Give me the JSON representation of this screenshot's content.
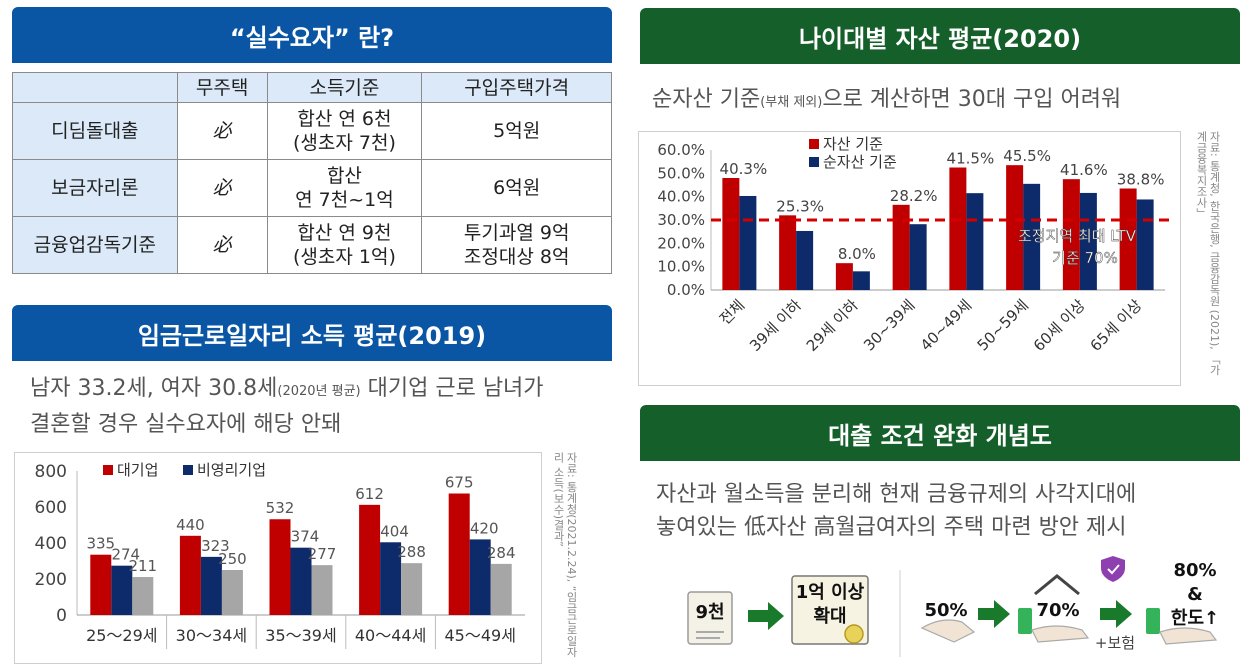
{
  "sections": {
    "definition": {
      "title": "“실수요자” 란?",
      "headers": [
        "",
        "무주택",
        "소득기준",
        "구입주택가격"
      ],
      "rows": [
        {
          "name": "디딤돌대출",
          "mark": "必",
          "income": [
            "합산 연 6천",
            "(생초자 7천)"
          ],
          "price": [
            "5억원"
          ]
        },
        {
          "name": "보금자리론",
          "mark": "必",
          "income": [
            "합산",
            "연 7천~1억"
          ],
          "price": [
            "6억원"
          ]
        },
        {
          "name": "금융업감독기준",
          "mark": "必",
          "income": [
            "합산 연 9천",
            "(생초자 1억)"
          ],
          "price": [
            "투기과열 9억",
            "조정대상 8억"
          ]
        }
      ]
    },
    "wage": {
      "title": "임금근로일자리 소득 평균(2019)",
      "desc_1a": "남자 33.2세, 여자 30.8세",
      "desc_1b": "(2020년 평균)",
      "desc_1c": " 대기업 근로 남녀가",
      "desc_2": "결혼할 경우 실수요자에 해당 안돼",
      "source": "자료: 통계청(2021.2.24), “임금근로일자리 소득(보수)결과”"
    },
    "asset": {
      "title": "나이대별 자산 평균(2020)",
      "desc_a": "순자산 기준",
      "desc_b": "(부채 제외)",
      "desc_c": "으로 계산하면 30대 구입 어려워",
      "source": "자료: 통계청, 한국은행, 금융감독원 (2021), 「가계금융복지조사」",
      "ref_label_1": "조정지역 최대 LTV",
      "ref_label_2": "기준 70%"
    },
    "concept": {
      "title": "대출 조건 완화 개념도",
      "desc_1": "자산과 월소득을 분리해 현재 금융규제의 사각지대에",
      "desc_2": "놓여있는 低자산 高월급여자의 주택 마련 방안 제시",
      "left_from": "9천",
      "left_to_1": "1억 이상",
      "left_to_2": "확대",
      "right_from": "50%",
      "right_mid": "70%",
      "right_plus": "+보험",
      "right_to_1": "80%",
      "right_to_2": "&",
      "right_to_3": "한도↑",
      "colors": {
        "arrow": "#1a7a2c",
        "badge": "#e8d25a"
      }
    }
  },
  "chart_data": [
    {
      "type": "bar",
      "categories": [
        "25～29세",
        "30～34세",
        "35～39세",
        "40～44세",
        "45～49세"
      ],
      "series": [
        {
          "name": "대기업",
          "values": [
            335,
            440,
            532,
            612,
            675
          ],
          "color": "#c00000"
        },
        {
          "name": "비영리기업",
          "values": [
            274,
            323,
            374,
            404,
            420
          ],
          "color": "#0d2a6b"
        },
        {
          "name": "",
          "values": [
            211,
            250,
            277,
            288,
            284
          ],
          "color": "#a6a6a6"
        }
      ],
      "ylim": [
        0,
        800
      ],
      "yticks": [
        "0",
        "200",
        "400",
        "600",
        "800"
      ],
      "ytick_values": [
        0,
        200,
        400,
        600,
        800
      ],
      "legend": "top-left",
      "grid": false
    },
    {
      "type": "bar",
      "categories": [
        "전체",
        "39세 이하",
        "29세 이하",
        "30~39세",
        "40~49세",
        "50~59세",
        "60세 이상",
        "65세 이상"
      ],
      "series": [
        {
          "name": "자산 기준",
          "values": [
            48.0,
            32.0,
            11.5,
            36.5,
            52.5,
            53.5,
            47.5,
            43.5
          ],
          "color": "#c00000"
        },
        {
          "name": "순자산 기준",
          "values": [
            40.3,
            25.3,
            8.0,
            28.2,
            41.5,
            45.5,
            41.6,
            38.8
          ],
          "color": "#0d2a6b"
        }
      ],
      "data_labels": [
        "40.3%",
        "25.3%",
        "8.0%",
        "28.2%",
        "41.5%",
        "45.5%",
        "41.6%",
        "38.8%"
      ],
      "ylim": [
        0,
        60
      ],
      "yticks": [
        "0.0%",
        "10.0%",
        "20.0%",
        "30.0%",
        "40.0%",
        "50.0%",
        "60.0%"
      ],
      "ytick_values": [
        0,
        10,
        20,
        30,
        40,
        50,
        60
      ],
      "reference_line": 30,
      "legend": "top-left",
      "grid": false
    }
  ]
}
